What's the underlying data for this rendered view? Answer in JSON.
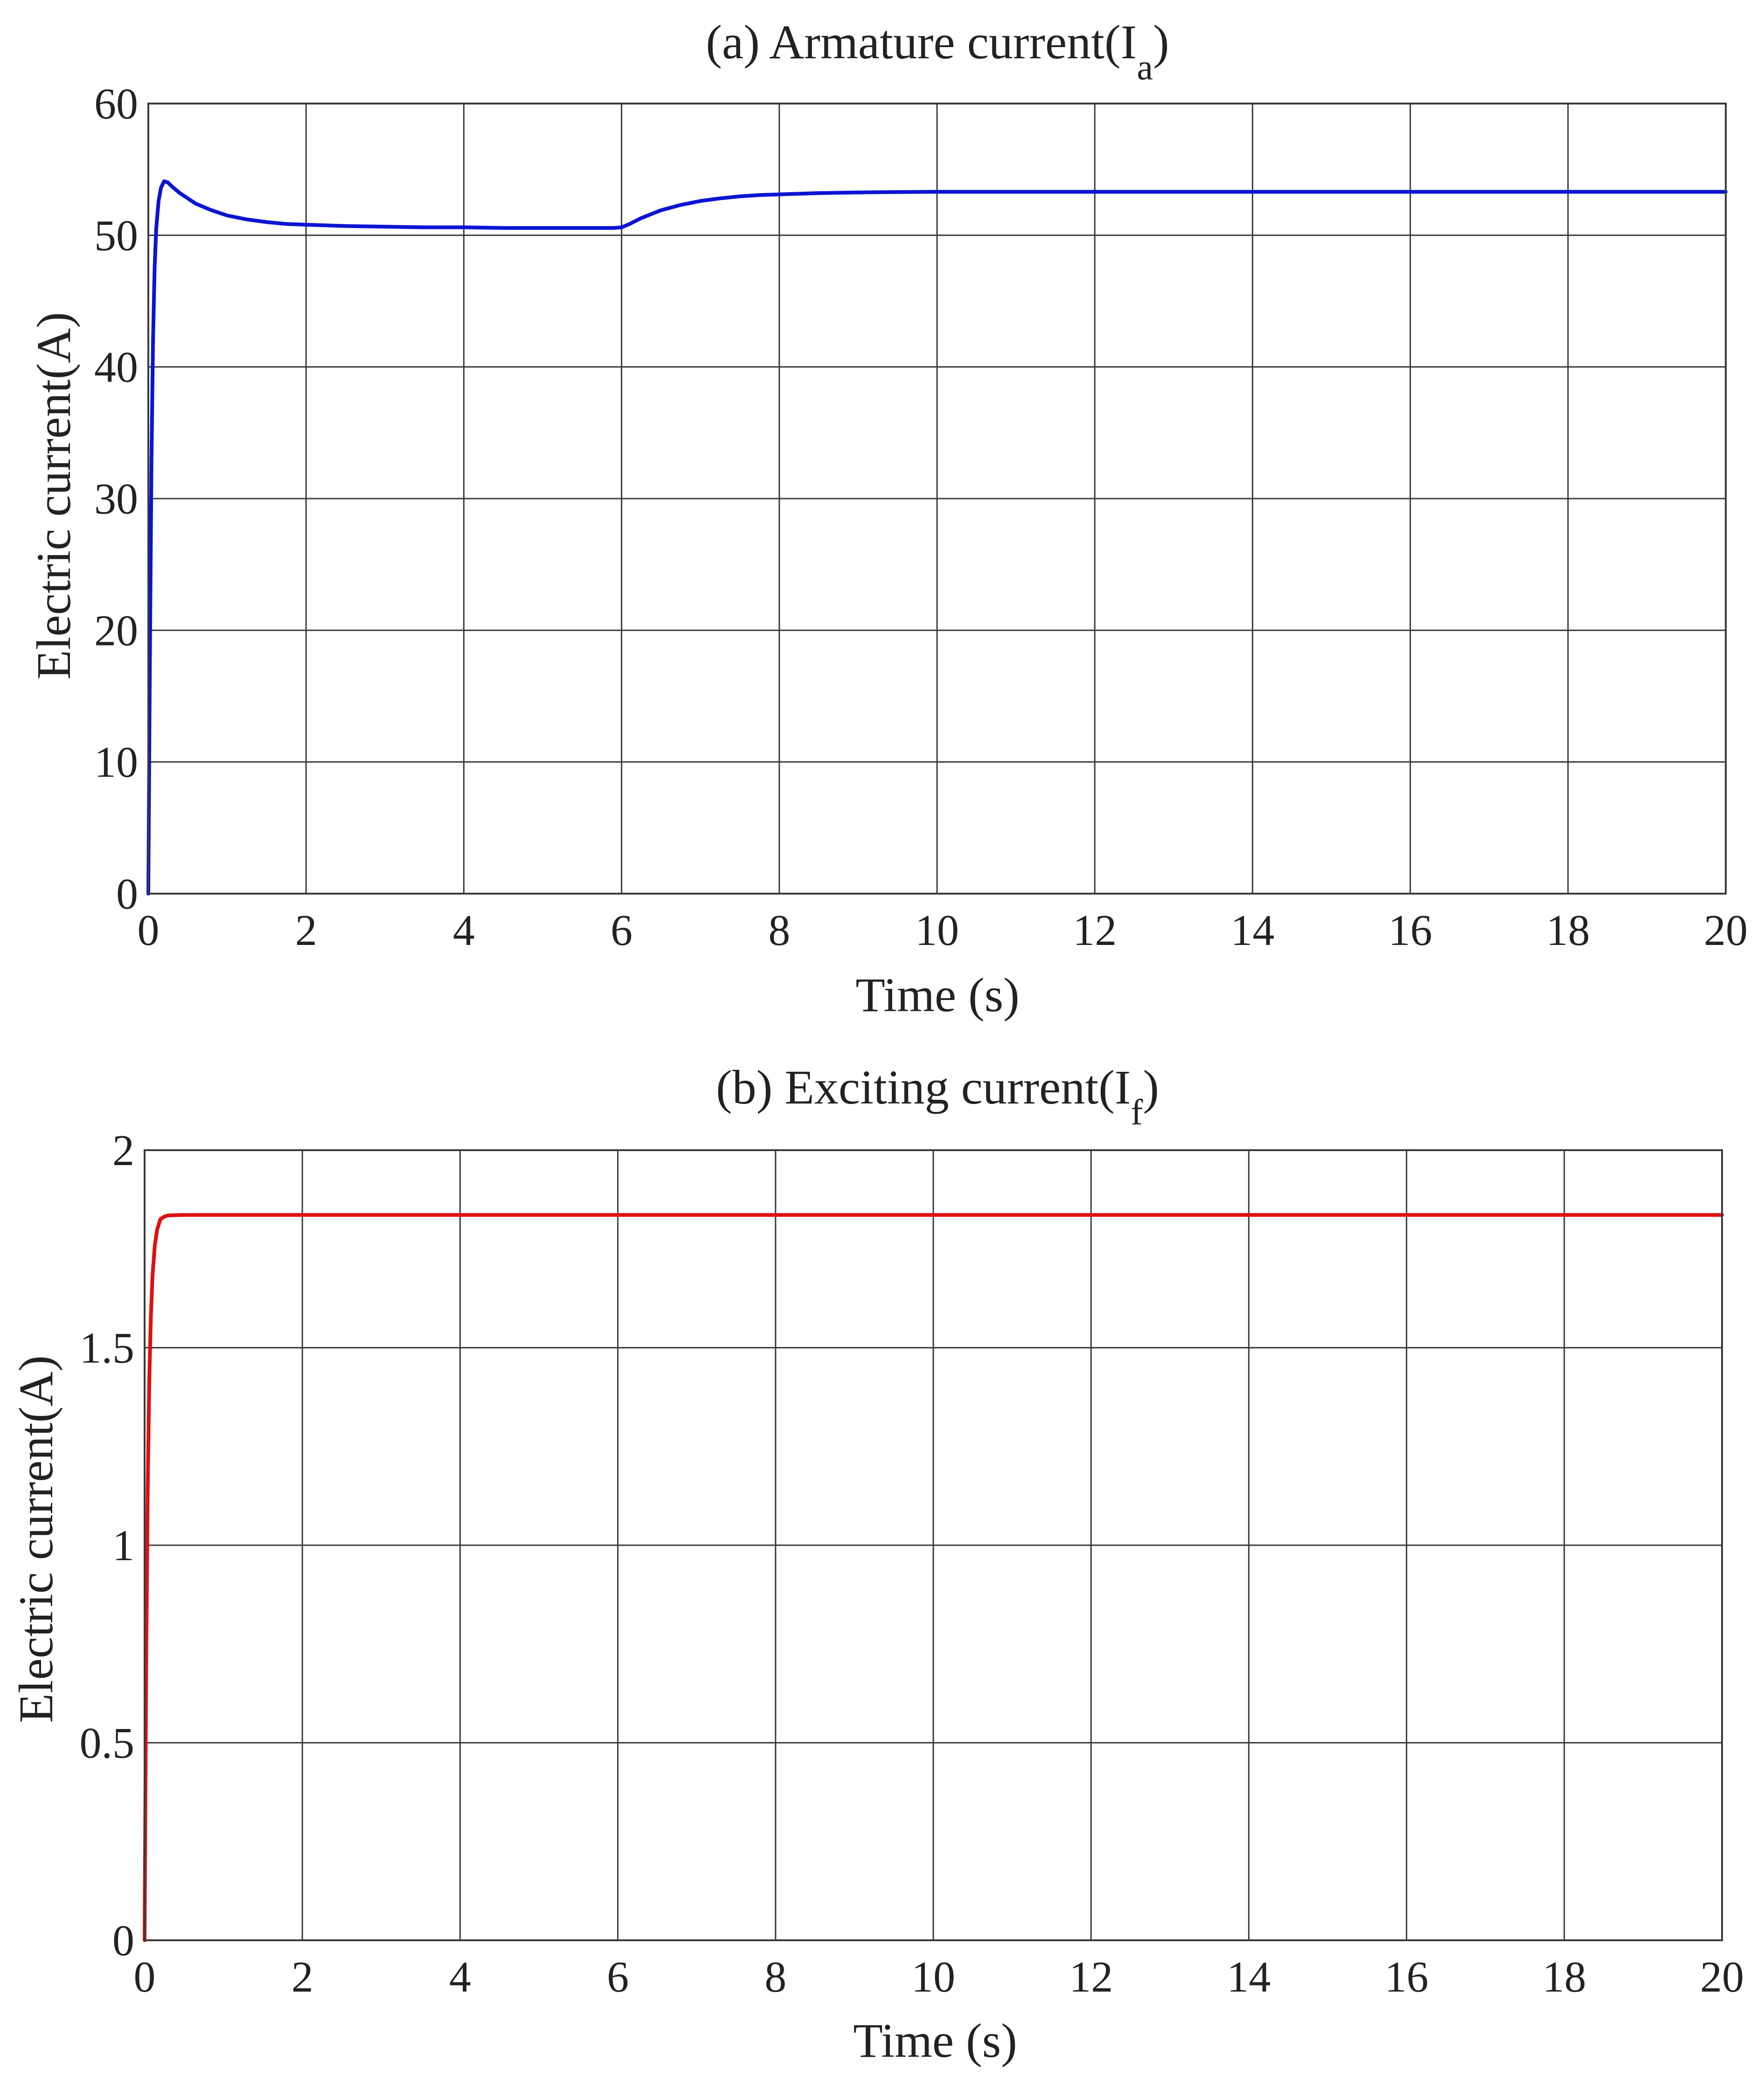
{
  "chart_data": [
    {
      "type": "line",
      "title_main": "(a) Armature current(I",
      "title_sub": "a",
      "title_end": ")",
      "xlabel": "Time (s)",
      "ylabel": "Electric current(A)",
      "xlim": [
        0,
        20
      ],
      "ylim": [
        0,
        60
      ],
      "xticks": [
        "0",
        "2",
        "4",
        "6",
        "8",
        "10",
        "12",
        "14",
        "16",
        "18",
        "20"
      ],
      "yticks": [
        "0",
        "10",
        "20",
        "30",
        "40",
        "50",
        "60"
      ],
      "grid": true,
      "series": [
        {
          "color": "#0a14d4",
          "x": [
            0,
            0.02,
            0.04,
            0.06,
            0.08,
            0.1,
            0.13,
            0.16,
            0.2,
            0.25,
            0.3,
            0.4,
            0.5,
            0.6,
            0.8,
            1.0,
            1.25,
            1.5,
            1.75,
            2.0,
            2.5,
            3.0,
            3.5,
            4.0,
            4.5,
            5.0,
            5.5,
            5.9,
            6.0,
            6.1,
            6.25,
            6.5,
            6.75,
            7.0,
            7.25,
            7.5,
            7.75,
            8.0,
            8.5,
            9.0,
            9.5,
            10,
            11,
            12,
            14,
            16,
            18,
            20
          ],
          "y": [
            0,
            18,
            33,
            42,
            47.5,
            50.5,
            52.6,
            53.6,
            54.1,
            54.0,
            53.7,
            53.2,
            52.8,
            52.4,
            51.9,
            51.5,
            51.2,
            51.0,
            50.85,
            50.8,
            50.7,
            50.65,
            50.6,
            50.6,
            50.55,
            50.55,
            50.55,
            50.55,
            50.6,
            50.85,
            51.3,
            51.9,
            52.3,
            52.6,
            52.8,
            52.95,
            53.05,
            53.1,
            53.2,
            53.25,
            53.28,
            53.3,
            53.3,
            53.3,
            53.3,
            53.3,
            53.3,
            53.3
          ]
        }
      ]
    },
    {
      "type": "line",
      "title_main": "(b) Exciting current(I",
      "title_sub": "f",
      "title_end": ")",
      "xlabel": "Time (s)",
      "ylabel": "Electric current(A)",
      "xlim": [
        0,
        20
      ],
      "ylim": [
        0,
        2
      ],
      "xticks": [
        "0",
        "2",
        "4",
        "6",
        "8",
        "10",
        "12",
        "14",
        "16",
        "18",
        "20"
      ],
      "yticks": [
        "0",
        "0.5",
        "1",
        "1.5",
        "2"
      ],
      "grid": true,
      "series": [
        {
          "color": "#e01010",
          "x": [
            0,
            0.02,
            0.04,
            0.06,
            0.08,
            0.1,
            0.13,
            0.16,
            0.2,
            0.25,
            0.3,
            0.5,
            1,
            2,
            4,
            6,
            8,
            10,
            12,
            14,
            16,
            18,
            20
          ],
          "y": [
            0,
            0.7,
            1.15,
            1.42,
            1.58,
            1.68,
            1.76,
            1.8,
            1.825,
            1.832,
            1.835,
            1.836,
            1.836,
            1.836,
            1.836,
            1.836,
            1.836,
            1.836,
            1.836,
            1.836,
            1.836,
            1.836,
            1.836
          ]
        }
      ]
    }
  ]
}
